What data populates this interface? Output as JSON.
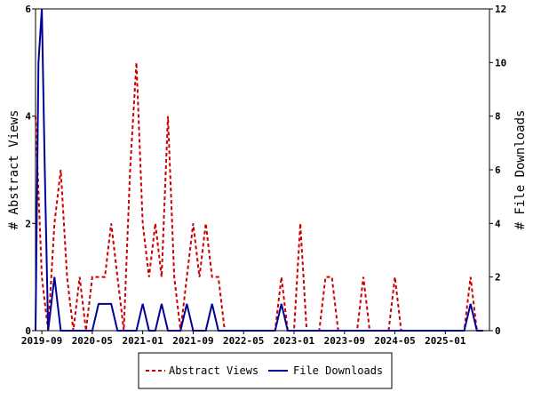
{
  "chart_data": {
    "type": "line",
    "x_start": "2019-08",
    "x_end": "2025-08",
    "x_ticks": [
      "2019-09",
      "2020-05",
      "2021-01",
      "2021-09",
      "2022-05",
      "2023-01",
      "2023-09",
      "2024-05",
      "2025-01"
    ],
    "ylabel_left": "# Abstract Views",
    "ylabel_right": "# File Downloads",
    "ylim_left": [
      0,
      6
    ],
    "ylim_right": [
      0,
      12
    ],
    "yticks_left": [
      0,
      2,
      4,
      6
    ],
    "yticks_right": [
      0,
      2,
      4,
      6,
      8,
      10,
      12
    ],
    "grid": false,
    "legend_position": "bottom",
    "series": [
      {
        "name": "Abstract Views",
        "axis": "left",
        "color": "#cc0000",
        "style": "dashed",
        "points": [
          [
            "2019-08",
            4
          ],
          [
            "2019-09",
            1
          ],
          [
            "2019-10",
            0
          ],
          [
            "2019-11",
            2
          ],
          [
            "2019-12",
            3
          ],
          [
            "2020-01",
            1
          ],
          [
            "2020-02",
            0
          ],
          [
            "2020-03",
            1
          ],
          [
            "2020-04",
            0
          ],
          [
            "2020-05",
            1
          ],
          [
            "2020-06",
            1
          ],
          [
            "2020-07",
            1
          ],
          [
            "2020-08",
            2
          ],
          [
            "2020-09",
            1
          ],
          [
            "2020-10",
            0
          ],
          [
            "2020-11",
            3
          ],
          [
            "2020-12",
            5
          ],
          [
            "2021-01",
            2
          ],
          [
            "2021-02",
            1
          ],
          [
            "2021-03",
            2
          ],
          [
            "2021-04",
            1
          ],
          [
            "2021-05",
            4
          ],
          [
            "2021-06",
            1
          ],
          [
            "2021-07",
            0
          ],
          [
            "2021-08",
            1
          ],
          [
            "2021-09",
            2
          ],
          [
            "2021-10",
            1
          ],
          [
            "2021-11",
            2
          ],
          [
            "2021-12",
            1
          ],
          [
            "2022-01",
            1
          ],
          [
            "2022-02",
            0
          ],
          [
            "2022-03",
            0
          ],
          [
            "2022-04",
            0
          ],
          [
            "2022-05",
            0
          ],
          [
            "2022-06",
            0
          ],
          [
            "2022-07",
            0
          ],
          [
            "2022-08",
            0
          ],
          [
            "2022-09",
            0
          ],
          [
            "2022-10",
            0
          ],
          [
            "2022-11",
            1
          ],
          [
            "2022-12",
            0
          ],
          [
            "2023-01",
            0
          ],
          [
            "2023-02",
            2
          ],
          [
            "2023-03",
            0
          ],
          [
            "2023-04",
            0
          ],
          [
            "2023-05",
            0
          ],
          [
            "2023-06",
            1
          ],
          [
            "2023-07",
            1
          ],
          [
            "2023-08",
            0
          ],
          [
            "2023-09",
            0
          ],
          [
            "2023-10",
            0
          ],
          [
            "2023-11",
            0
          ],
          [
            "2023-12",
            1
          ],
          [
            "2024-01",
            0
          ],
          [
            "2024-02",
            0
          ],
          [
            "2024-03",
            0
          ],
          [
            "2024-04",
            0
          ],
          [
            "2024-05",
            1
          ],
          [
            "2024-06",
            0
          ],
          [
            "2024-07",
            0
          ],
          [
            "2024-08",
            0
          ],
          [
            "2024-09",
            0
          ],
          [
            "2024-10",
            0
          ],
          [
            "2024-11",
            0
          ],
          [
            "2024-12",
            0
          ],
          [
            "2025-01",
            0
          ],
          [
            "2025-02",
            0
          ],
          [
            "2025-03",
            0
          ],
          [
            "2025-04",
            0
          ],
          [
            "2025-05",
            1
          ],
          [
            "2025-06",
            0
          ],
          [
            "2025-07",
            0
          ]
        ]
      },
      {
        "name": "File Downloads",
        "axis": "right",
        "color": "#000099",
        "style": "solid",
        "points": [
          [
            "2019-08",
            0
          ],
          [
            "2019-08-15",
            10
          ],
          [
            "2019-09",
            12
          ],
          [
            "2019-09-15",
            6
          ],
          [
            "2019-10",
            0
          ],
          [
            "2019-11",
            2
          ],
          [
            "2019-12",
            0
          ],
          [
            "2020-01",
            0
          ],
          [
            "2020-02",
            0
          ],
          [
            "2020-03",
            0
          ],
          [
            "2020-04",
            0
          ],
          [
            "2020-05",
            0
          ],
          [
            "2020-06",
            1
          ],
          [
            "2020-07",
            1
          ],
          [
            "2020-08",
            1
          ],
          [
            "2020-09",
            0
          ],
          [
            "2020-10",
            0
          ],
          [
            "2020-11",
            0
          ],
          [
            "2020-12",
            0
          ],
          [
            "2021-01",
            1
          ],
          [
            "2021-02",
            0
          ],
          [
            "2021-03",
            0
          ],
          [
            "2021-04",
            1
          ],
          [
            "2021-05",
            0
          ],
          [
            "2021-06",
            0
          ],
          [
            "2021-07",
            0
          ],
          [
            "2021-08",
            1
          ],
          [
            "2021-09",
            0
          ],
          [
            "2021-10",
            0
          ],
          [
            "2021-11",
            0
          ],
          [
            "2021-12",
            1
          ],
          [
            "2022-01",
            0
          ],
          [
            "2022-02",
            0
          ],
          [
            "2022-03",
            0
          ],
          [
            "2022-04",
            0
          ],
          [
            "2022-05",
            0
          ],
          [
            "2022-06",
            0
          ],
          [
            "2022-07",
            0
          ],
          [
            "2022-08",
            0
          ],
          [
            "2022-09",
            0
          ],
          [
            "2022-10",
            0
          ],
          [
            "2022-11",
            1
          ],
          [
            "2022-12",
            0
          ],
          [
            "2023-01",
            0
          ],
          [
            "2023-02",
            0
          ],
          [
            "2023-03",
            0
          ],
          [
            "2023-04",
            0
          ],
          [
            "2023-05",
            0
          ],
          [
            "2023-06",
            0
          ],
          [
            "2023-07",
            0
          ],
          [
            "2023-08",
            0
          ],
          [
            "2023-09",
            0
          ],
          [
            "2023-10",
            0
          ],
          [
            "2023-11",
            0
          ],
          [
            "2023-12",
            0
          ],
          [
            "2024-01",
            0
          ],
          [
            "2024-02",
            0
          ],
          [
            "2024-03",
            0
          ],
          [
            "2024-04",
            0
          ],
          [
            "2024-05",
            0
          ],
          [
            "2024-06",
            0
          ],
          [
            "2024-07",
            0
          ],
          [
            "2024-08",
            0
          ],
          [
            "2024-09",
            0
          ],
          [
            "2024-10",
            0
          ],
          [
            "2024-11",
            0
          ],
          [
            "2024-12",
            0
          ],
          [
            "2025-01",
            0
          ],
          [
            "2025-02",
            0
          ],
          [
            "2025-03",
            0
          ],
          [
            "2025-04",
            0
          ],
          [
            "2025-05",
            1
          ],
          [
            "2025-06",
            0
          ],
          [
            "2025-07",
            0
          ]
        ]
      }
    ]
  }
}
